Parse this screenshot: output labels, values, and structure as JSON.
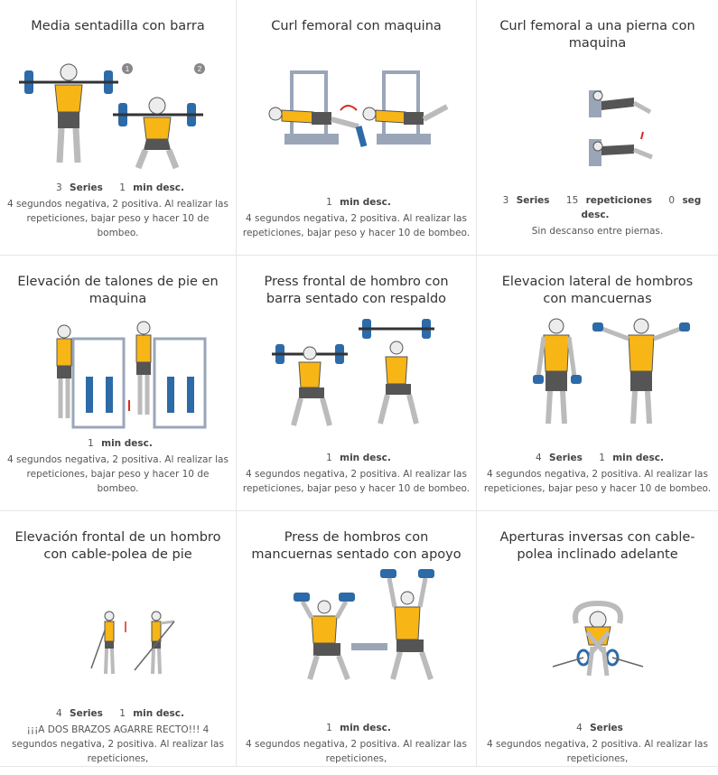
{
  "exercises": [
    {
      "title": "Media sentadilla con barra",
      "series": "3",
      "series_label": "Series",
      "rest": "1",
      "rest_label": "min desc.",
      "reps": "",
      "reps_label": "",
      "desc": "4 segundos negativa, 2 positiva. Al realizar las repeticiones, bajar peso y hacer 10 de bombeo.",
      "step1": "1",
      "step2": "2"
    },
    {
      "title": "Curl femoral con maquina",
      "series": "",
      "series_label": "",
      "rest": "1",
      "rest_label": "min desc.",
      "reps": "",
      "reps_label": "",
      "desc": "4 segundos negativa, 2 positiva. Al realizar las repeticiones, bajar peso y hacer 10 de bombeo."
    },
    {
      "title": "Curl femoral a una pierna con maquina",
      "series": "3",
      "series_label": "Series",
      "rest": "0",
      "rest_label": "seg desc.",
      "reps": "15",
      "reps_label": "repeticiones",
      "desc": "Sin descanso entre piernas."
    },
    {
      "title": "Elevación de talones de pie en maquina",
      "series": "",
      "series_label": "",
      "rest": "1",
      "rest_label": "min desc.",
      "reps": "",
      "reps_label": "",
      "desc": "4 segundos negativa, 2 positiva. Al realizar las repeticiones, bajar peso y hacer 10 de bombeo."
    },
    {
      "title": "Press frontal de hombro con barra sentado con respaldo",
      "series": "",
      "series_label": "",
      "rest": "1",
      "rest_label": "min desc.",
      "reps": "",
      "reps_label": "",
      "desc": "4 segundos negativa, 2 positiva. Al realizar las repeticiones, bajar peso y hacer 10 de bombeo."
    },
    {
      "title": "Elevacion lateral de hombros con mancuernas",
      "series": "4",
      "series_label": "Series",
      "rest": "1",
      "rest_label": "min desc.",
      "reps": "",
      "reps_label": "",
      "desc": "4 segundos negativa, 2 positiva. Al realizar las repeticiones, bajar peso y hacer 10 de bombeo."
    },
    {
      "title": "Elevación frontal de un hombro con cable-polea de pie",
      "series": "4",
      "series_label": "Series",
      "rest": "1",
      "rest_label": "min desc.",
      "reps": "",
      "reps_label": "",
      "desc": "¡¡¡A DOS BRAZOS AGARRE RECTO!!! 4 segundos negativa, 2 positiva. Al realizar las repeticiones,"
    },
    {
      "title": "Press de hombros con mancuernas sentado con apoyo",
      "series": "",
      "series_label": "",
      "rest": "1",
      "rest_label": "min desc.",
      "reps": "",
      "reps_label": "",
      "desc": "4 segundos negativa, 2 positiva. Al realizar las repeticiones,"
    },
    {
      "title": "Aperturas inversas con cable-polea inclinado adelante",
      "series": "4",
      "series_label": "Series",
      "rest": "",
      "rest_label": "",
      "reps": "",
      "reps_label": "",
      "desc": "4 segundos negativa, 2 positiva. Al realizar las repeticiones,"
    }
  ],
  "colors": {
    "shirt": "#f7b516",
    "weight": "#2d6aa8",
    "machine": "#9aa6b8",
    "shorts": "#555555",
    "skin": "#ececec",
    "arrow": "#d62b1e"
  }
}
